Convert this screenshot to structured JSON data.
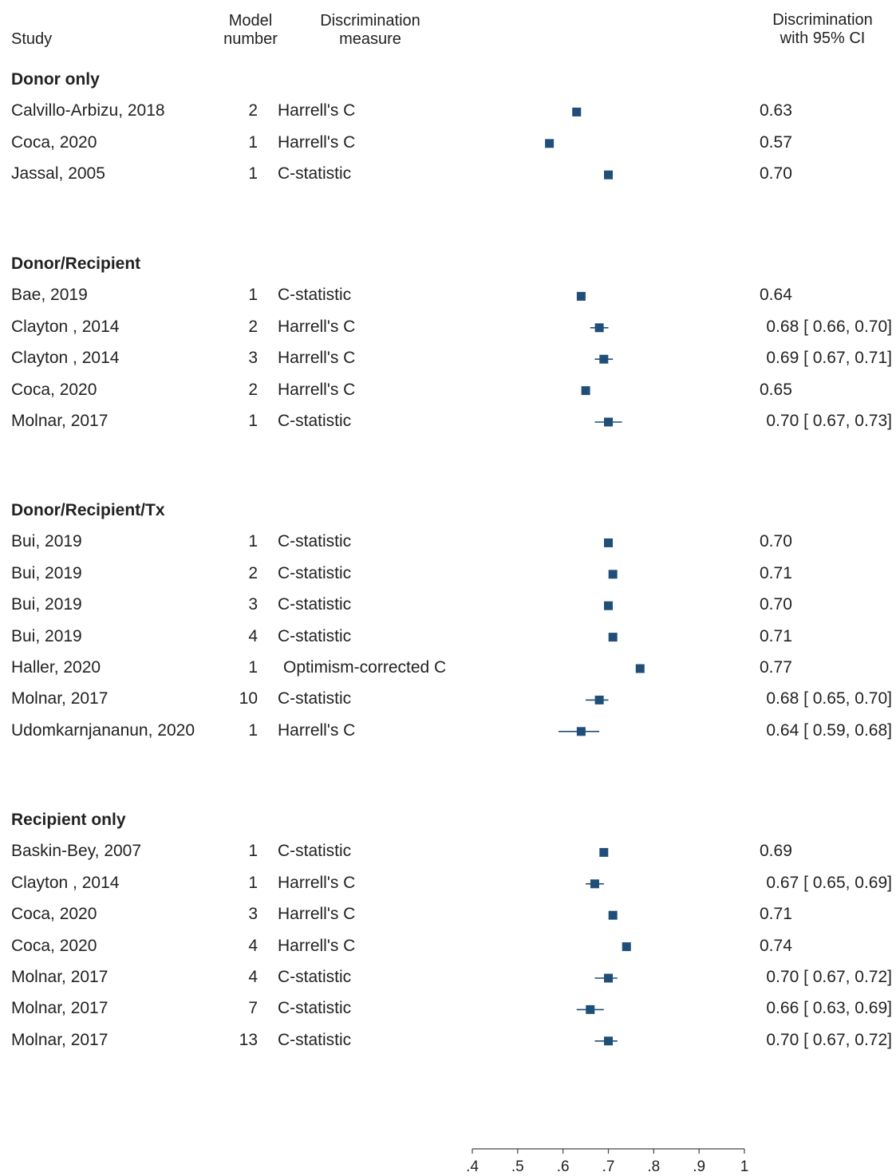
{
  "headers": {
    "study": "Study",
    "model_line1": "Model",
    "model_line2": "number",
    "measure_line1": "Discrimination",
    "measure_line2": "measure",
    "ci_line1": "Discrimination",
    "ci_line2": "with 95% CI"
  },
  "colors": {
    "marker": "#1f4e79",
    "text": "#222222",
    "axis": "#444444"
  },
  "chart_data": {
    "type": "forest",
    "xlim": [
      0.4,
      1.0
    ],
    "x_ticks": [
      0.4,
      0.5,
      0.6,
      0.7,
      0.8,
      0.9,
      1.0
    ],
    "x_tick_labels": [
      ".4",
      ".5",
      ".6",
      ".7",
      ".8",
      ".9",
      "1"
    ],
    "grid": false,
    "groups": [
      {
        "name": "Donor only",
        "rows": [
          {
            "study": "Calvillo-Arbizu, 2018",
            "model": "2",
            "measure": "Harrell's C",
            "est": 0.63,
            "label": "0.63"
          },
          {
            "study": "Coca, 2020",
            "model": "1",
            "measure": "Harrell's C",
            "est": 0.57,
            "label": "0.57"
          },
          {
            "study": "Jassal, 2005",
            "model": "1",
            "measure": "C-statistic",
            "est": 0.7,
            "label": "0.70"
          }
        ]
      },
      {
        "name": "Donor/Recipient",
        "rows": [
          {
            "study": "Bae, 2019",
            "model": "1",
            "measure": "C-statistic",
            "est": 0.64,
            "label": "0.64"
          },
          {
            "study": "Clayton , 2014",
            "model": "2",
            "measure": "Harrell's C",
            "est": 0.68,
            "lo": 0.66,
            "hi": 0.7,
            "label": "0.68 [ 0.66,  0.70]"
          },
          {
            "study": "Clayton , 2014",
            "model": "3",
            "measure": "Harrell's C",
            "est": 0.69,
            "lo": 0.67,
            "hi": 0.71,
            "label": "0.69 [ 0.67,  0.71]"
          },
          {
            "study": "Coca, 2020",
            "model": "2",
            "measure": "Harrell's C",
            "est": 0.65,
            "label": "0.65"
          },
          {
            "study": "Molnar, 2017",
            "model": "1",
            "measure": "C-statistic",
            "est": 0.7,
            "lo": 0.67,
            "hi": 0.73,
            "label": "0.70 [ 0.67,  0.73]"
          }
        ]
      },
      {
        "name": "Donor/Recipient/Tx",
        "rows": [
          {
            "study": "Bui, 2019",
            "model": "1",
            "measure": "C-statistic",
            "est": 0.7,
            "label": "0.70"
          },
          {
            "study": "Bui, 2019",
            "model": "2",
            "measure": "C-statistic",
            "est": 0.71,
            "label": "0.71"
          },
          {
            "study": "Bui, 2019",
            "model": "3",
            "measure": "C-statistic",
            "est": 0.7,
            "label": "0.70"
          },
          {
            "study": "Bui, 2019",
            "model": "4",
            "measure": "C-statistic",
            "est": 0.71,
            "label": "0.71"
          },
          {
            "study": "Haller, 2020",
            "model": "1",
            "measure": "Optimism-corrected C",
            "est": 0.77,
            "label": "0.77"
          },
          {
            "study": "Molnar, 2017",
            "model": "10",
            "measure": "C-statistic",
            "est": 0.68,
            "lo": 0.65,
            "hi": 0.7,
            "label": "0.68 [ 0.65,  0.70]"
          },
          {
            "study": "Udomkarnjananun, 2020",
            "model": "1",
            "measure": "Harrell's C",
            "est": 0.64,
            "lo": 0.59,
            "hi": 0.68,
            "label": "0.64 [ 0.59,  0.68]"
          }
        ]
      },
      {
        "name": "Recipient only",
        "rows": [
          {
            "study": "Baskin-Bey, 2007",
            "model": "1",
            "measure": "C-statistic",
            "est": 0.69,
            "label": "0.69"
          },
          {
            "study": "Clayton , 2014",
            "model": "1",
            "measure": "Harrell's C",
            "est": 0.67,
            "lo": 0.65,
            "hi": 0.69,
            "label": "0.67 [ 0.65,  0.69]"
          },
          {
            "study": "Coca, 2020",
            "model": "3",
            "measure": "Harrell's C",
            "est": 0.71,
            "label": "0.71"
          },
          {
            "study": "Coca, 2020",
            "model": "4",
            "measure": "Harrell's C",
            "est": 0.74,
            "label": "0.74"
          },
          {
            "study": "Molnar, 2017",
            "model": "4",
            "measure": "C-statistic",
            "est": 0.7,
            "lo": 0.67,
            "hi": 0.72,
            "label": "0.70 [ 0.67,  0.72]"
          },
          {
            "study": "Molnar, 2017",
            "model": "7",
            "measure": "C-statistic",
            "est": 0.66,
            "lo": 0.63,
            "hi": 0.69,
            "label": "0.66 [ 0.63,  0.69]"
          },
          {
            "study": "Molnar, 2017",
            "model": "13",
            "measure": "C-statistic",
            "est": 0.7,
            "lo": 0.67,
            "hi": 0.72,
            "label": "0.70 [ 0.67,  0.72]"
          }
        ]
      }
    ]
  }
}
